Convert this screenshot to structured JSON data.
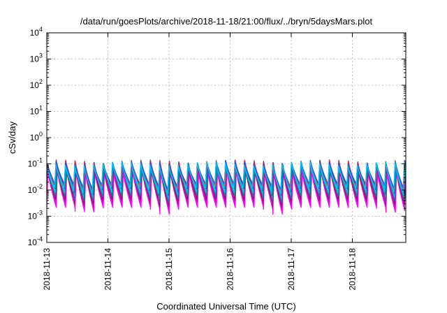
{
  "chart_data": {
    "type": "line",
    "title": "/data/run/goesPlots/archive/2018-11-18/21:00/flux/../bryn/5daysMars.plot",
    "xlabel": "Coordinated Universal Time (UTC)",
    "ylabel": "cSv/day",
    "yscale": "log",
    "ylim": [
      0.0001,
      10000
    ],
    "y_ticks": [
      {
        "value": 0.0001,
        "base": "10",
        "exp": "-4"
      },
      {
        "value": 0.001,
        "base": "10",
        "exp": "-3"
      },
      {
        "value": 0.01,
        "base": "10",
        "exp": "-2"
      },
      {
        "value": 0.1,
        "base": "10",
        "exp": "-1"
      },
      {
        "value": 1,
        "base": "10",
        "exp": "0"
      },
      {
        "value": 10,
        "base": "10",
        "exp": "1"
      },
      {
        "value": 100,
        "base": "10",
        "exp": "2"
      },
      {
        "value": 1000,
        "base": "10",
        "exp": "3"
      },
      {
        "value": 10000,
        "base": "10",
        "exp": "4"
      }
    ],
    "xlim": [
      "2018-11-13T00:00",
      "2018-11-18T21:00"
    ],
    "x_ticks": [
      "2018-11-13",
      "2018-11-14",
      "2018-11-15",
      "2018-11-16",
      "2018-11-17",
      "2018-11-18"
    ],
    "grid": true,
    "legend": "none",
    "sawtooth_period_hours": 3.7,
    "series": [
      {
        "color": "#ff00ff",
        "peak": 0.055,
        "trough": 0.0022
      },
      {
        "color": "#ff00ff",
        "peak": 0.06,
        "trough": 0.0028
      },
      {
        "color": "#cc00cc",
        "peak": 0.068,
        "trough": 0.0035
      },
      {
        "color": "#8b1a5a",
        "peak": 0.075,
        "trough": 0.0045
      },
      {
        "color": "#008b8b",
        "peak": 0.085,
        "trough": 0.006
      },
      {
        "color": "#00bcd4",
        "peak": 0.095,
        "trough": 0.008
      },
      {
        "color": "#1f3fbf",
        "peak": 0.11,
        "trough": 0.011
      },
      {
        "color": "#ff2020",
        "peak": 0.12,
        "trough": 0.014
      },
      {
        "color": "#2255dd",
        "peak": 0.115,
        "trough": 0.017
      },
      {
        "color": "#00c8ff",
        "peak": 0.1,
        "trough": 0.012
      }
    ]
  }
}
